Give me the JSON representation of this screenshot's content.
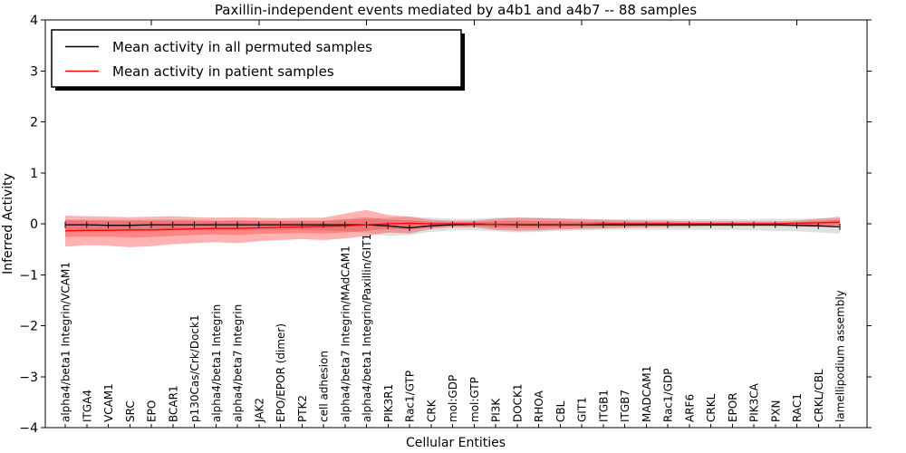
{
  "legend": {
    "items": [
      {
        "label": "Mean activity in all permuted samples",
        "color": "#000000"
      },
      {
        "label": "Mean activity in patient samples",
        "color": "#ff0000"
      }
    ]
  },
  "chart_data": {
    "type": "line",
    "title": "Paxillin-independent events mediated by a4b1 and a4b7 -- 88 samples",
    "xlabel": "Cellular Entities",
    "ylabel": "Inferred Activity",
    "ylim": [
      -4,
      4
    ],
    "yticks": [
      -4,
      -3,
      -2,
      -1,
      0,
      1,
      2,
      3,
      4
    ],
    "ytick_labels": [
      "−4",
      "−3",
      "−2",
      "−1",
      "0",
      "1",
      "2",
      "3",
      "4"
    ],
    "grid": false,
    "legend_position": "upper left",
    "top_tick_indices": [
      4,
      9,
      14,
      19,
      24,
      29,
      34
    ],
    "categories": [
      "alpha4/beta1 Integrin/VCAM1",
      "ITGA4",
      "VCAM1",
      "SRC",
      "EPO",
      "BCAR1",
      "p130Cas/Crk/Dock1",
      "alpha4/beta1 Integrin",
      "alpha4/beta7 Integrin",
      "JAK2",
      "EPO/EPOR (dimer)",
      "PTK2",
      "cell adhesion",
      "alpha4/beta7 Integrin/MAdCAM1",
      "alpha4/beta1 Integrin/Paxillin/GIT1",
      "PIK3R1",
      "Rac1/GTP",
      "CRK",
      "mol:GDP",
      "mol:GTP",
      "PI3K",
      "DOCK1",
      "RHOA",
      "CBL",
      "GIT1",
      "ITGB1",
      "ITGB7",
      "MADCAM1",
      "Rac1/GDP",
      "ARF6",
      "CRKL",
      "EPOR",
      "PIK3CA",
      "PXN",
      "RAC1",
      "CRKL/CBL",
      "lamellipodium assembly"
    ],
    "series": [
      {
        "name": "Mean activity in all permuted samples",
        "color": "#000000",
        "marker": "tick",
        "values": [
          -0.02,
          -0.02,
          -0.03,
          -0.03,
          -0.02,
          -0.02,
          -0.02,
          -0.02,
          -0.02,
          -0.02,
          -0.02,
          -0.02,
          -0.02,
          -0.02,
          -0.02,
          -0.04,
          -0.08,
          -0.04,
          -0.02,
          -0.01,
          -0.01,
          -0.02,
          -0.02,
          -0.02,
          -0.02,
          -0.02,
          -0.02,
          -0.02,
          -0.02,
          -0.02,
          -0.02,
          -0.02,
          -0.02,
          -0.02,
          -0.03,
          -0.04,
          -0.06
        ]
      },
      {
        "name": "Mean activity in patient samples",
        "color": "#ff0000",
        "marker": "none",
        "values": [
          -0.14,
          -0.13,
          -0.13,
          -0.12,
          -0.12,
          -0.11,
          -0.1,
          -0.09,
          -0.09,
          -0.08,
          -0.07,
          -0.06,
          -0.05,
          -0.04,
          -0.02,
          0.0,
          0.01,
          0.0,
          0.0,
          0.0,
          -0.01,
          -0.01,
          -0.01,
          -0.01,
          -0.01,
          0.0,
          0.0,
          0.0,
          0.0,
          0.0,
          0.0,
          0.0,
          0.0,
          0.0,
          0.01,
          0.02,
          0.03
        ]
      }
    ],
    "bands": [
      {
        "name": "permuted-samples-range",
        "color": "#bbbbbb",
        "opacity": 0.45,
        "upper": [
          0.08,
          0.08,
          0.08,
          0.08,
          0.08,
          0.08,
          0.08,
          0.07,
          0.07,
          0.07,
          0.07,
          0.07,
          0.07,
          0.08,
          0.09,
          0.12,
          0.14,
          0.12,
          0.1,
          0.1,
          0.12,
          0.13,
          0.12,
          0.11,
          0.1,
          0.09,
          0.09,
          0.09,
          0.09,
          0.09,
          0.09,
          0.09,
          0.09,
          0.1,
          0.1,
          0.1,
          0.1
        ],
        "lower": [
          -0.14,
          -0.14,
          -0.14,
          -0.14,
          -0.13,
          -0.13,
          -0.13,
          -0.12,
          -0.12,
          -0.12,
          -0.12,
          -0.12,
          -0.13,
          -0.15,
          -0.18,
          -0.24,
          -0.22,
          -0.16,
          -0.13,
          -0.13,
          -0.15,
          -0.17,
          -0.16,
          -0.14,
          -0.13,
          -0.12,
          -0.12,
          -0.12,
          -0.12,
          -0.12,
          -0.12,
          -0.12,
          -0.13,
          -0.14,
          -0.15,
          -0.17,
          -0.19
        ]
      },
      {
        "name": "patient-samples-range-outer",
        "color": "#ff0000",
        "opacity": 0.3,
        "upper": [
          0.16,
          0.15,
          0.14,
          0.13,
          0.14,
          0.15,
          0.13,
          0.12,
          0.13,
          0.12,
          0.11,
          0.12,
          0.12,
          0.2,
          0.27,
          0.17,
          0.14,
          0.08,
          0.06,
          0.06,
          0.1,
          0.12,
          0.11,
          0.1,
          0.09,
          0.08,
          0.07,
          0.06,
          0.06,
          0.05,
          0.05,
          0.05,
          0.05,
          0.05,
          0.06,
          0.1,
          0.14
        ],
        "lower": [
          -0.45,
          -0.42,
          -0.43,
          -0.46,
          -0.44,
          -0.4,
          -0.38,
          -0.36,
          -0.38,
          -0.34,
          -0.32,
          -0.3,
          -0.32,
          -0.29,
          -0.24,
          -0.17,
          -0.19,
          -0.1,
          -0.07,
          -0.07,
          -0.12,
          -0.14,
          -0.13,
          -0.11,
          -0.1,
          -0.09,
          -0.08,
          -0.07,
          -0.06,
          -0.06,
          -0.05,
          -0.05,
          -0.05,
          -0.05,
          -0.06,
          -0.06,
          -0.04
        ]
      },
      {
        "name": "patient-samples-range-inner",
        "color": "#ff0000",
        "opacity": 0.25,
        "upper": [
          0.07,
          0.07,
          0.06,
          0.06,
          0.06,
          0.07,
          0.06,
          0.05,
          0.06,
          0.05,
          0.05,
          0.05,
          0.05,
          0.09,
          0.13,
          0.08,
          0.07,
          0.04,
          0.03,
          0.03,
          0.05,
          0.06,
          0.05,
          0.05,
          0.04,
          0.04,
          0.03,
          0.03,
          0.03,
          0.02,
          0.02,
          0.02,
          0.02,
          0.02,
          0.03,
          0.05,
          0.08
        ],
        "lower": [
          -0.26,
          -0.25,
          -0.25,
          -0.27,
          -0.26,
          -0.24,
          -0.22,
          -0.21,
          -0.22,
          -0.2,
          -0.19,
          -0.18,
          -0.19,
          -0.17,
          -0.14,
          -0.1,
          -0.11,
          -0.06,
          -0.04,
          -0.04,
          -0.07,
          -0.08,
          -0.08,
          -0.07,
          -0.06,
          -0.05,
          -0.05,
          -0.04,
          -0.04,
          -0.03,
          -0.03,
          -0.03,
          -0.03,
          -0.03,
          -0.03,
          -0.03,
          -0.02
        ]
      }
    ]
  }
}
